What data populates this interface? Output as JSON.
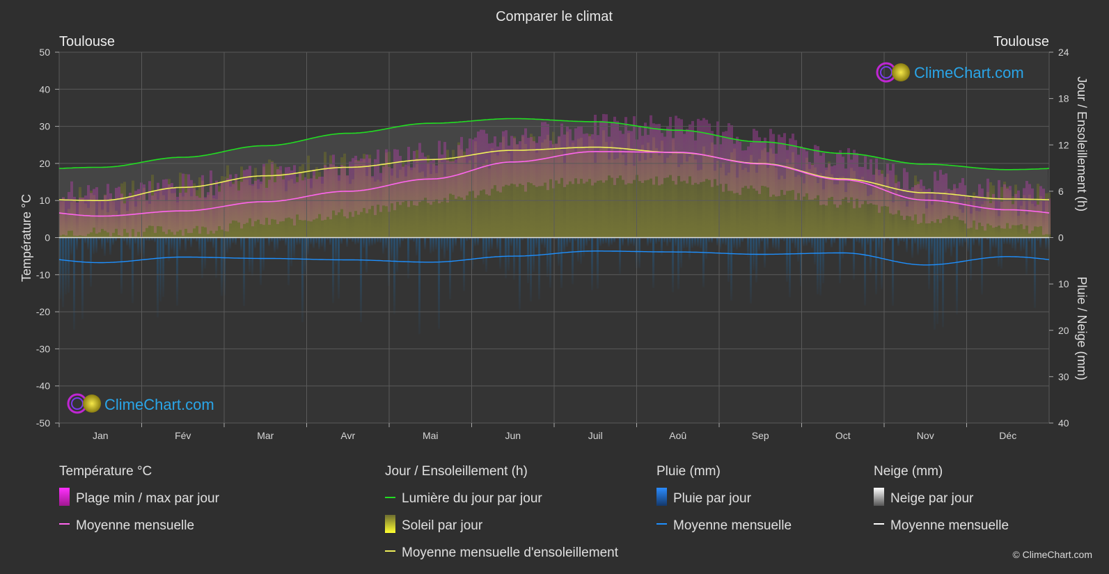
{
  "title": "Comparer le climat",
  "location_left": "Toulouse",
  "location_right": "Toulouse",
  "axes": {
    "left_label": "Température °C",
    "right_top_label": "Jour / Ensoleillement (h)",
    "right_bottom_label": "Pluie / Neige (mm)",
    "left_ticks": [
      "50",
      "40",
      "30",
      "20",
      "10",
      "0",
      "-10",
      "-20",
      "-30",
      "-40",
      "-50"
    ],
    "right_top_ticks": [
      "24",
      "18",
      "12",
      "6",
      "0"
    ],
    "right_bottom_ticks": [
      "10",
      "20",
      "30",
      "40"
    ]
  },
  "watermark": {
    "text": "ClimeChart.com"
  },
  "copyright": "© ClimeChart.com",
  "legend": {
    "temperature": {
      "title": "Température °C",
      "range": "Plage min / max par jour",
      "mean": "Moyenne mensuelle"
    },
    "sun": {
      "title": "Jour / Ensoleillement (h)",
      "daylight": "Lumière du jour par jour",
      "sunshine": "Soleil par jour",
      "sun_mean": "Moyenne mensuelle d'ensoleillement"
    },
    "rain": {
      "title": "Pluie (mm)",
      "daily": "Pluie par jour",
      "mean": "Moyenne mensuelle"
    },
    "snow": {
      "title": "Neige (mm)",
      "daily": "Neige par jour",
      "mean": "Moyenne mensuelle"
    }
  },
  "colors": {
    "background": "#2f2f2f",
    "daylight": "#22dd22",
    "sunshine_mean": "#f0f05a",
    "temp_mean": "#ff66ee",
    "temp_range": "#e020c8",
    "rain": "#1e90ff",
    "snow": "#ffffff",
    "grid": "#5a5a5a"
  },
  "chart_data": {
    "type": "area",
    "categories": [
      "Jan",
      "Fév",
      "Mar",
      "Avr",
      "Mai",
      "Jun",
      "Juil",
      "Aoû",
      "Sep",
      "Oct",
      "Nov",
      "Déc"
    ],
    "temp_ylim": [
      -50,
      50
    ],
    "sun_ylim": [
      0,
      24
    ],
    "rain_ylim": [
      0,
      40
    ],
    "series": [
      {
        "name": "Lumière du jour par jour",
        "axis": "hours",
        "values": [
          9.1,
          10.4,
          11.9,
          13.5,
          14.8,
          15.4,
          15.0,
          13.9,
          12.4,
          10.9,
          9.5,
          8.8
        ]
      },
      {
        "name": "Moyenne mensuelle d'ensoleillement",
        "axis": "hours",
        "values": [
          4.8,
          6.5,
          8.0,
          9.1,
          10.1,
          11.3,
          11.7,
          11.0,
          9.6,
          7.6,
          5.8,
          5.0
        ]
      },
      {
        "name": "Moyenne mensuelle (température)",
        "axis": "temperature",
        "values": [
          5.8,
          7.2,
          9.7,
          12.5,
          15.8,
          20.4,
          23.2,
          23.0,
          19.9,
          15.6,
          10.1,
          7.5
        ]
      },
      {
        "name": "Plage min / max par jour (min)",
        "axis": "temperature",
        "values": [
          1.5,
          2.0,
          4.0,
          6.5,
          10.0,
          13.5,
          15.5,
          15.5,
          12.5,
          9.5,
          5.0,
          2.5
        ]
      },
      {
        "name": "Plage min / max par jour (max)",
        "axis": "temperature",
        "values": [
          10.5,
          12.5,
          15.5,
          18.0,
          21.5,
          26.0,
          28.5,
          28.5,
          25.0,
          20.0,
          14.0,
          11.0
        ]
      },
      {
        "name": "Moyenne mensuelle (pluie)",
        "axis": "rain",
        "values": [
          5.4,
          4.2,
          4.5,
          4.8,
          5.3,
          4.0,
          2.9,
          3.1,
          3.6,
          3.3,
          5.9,
          4.1
        ]
      }
    ]
  }
}
